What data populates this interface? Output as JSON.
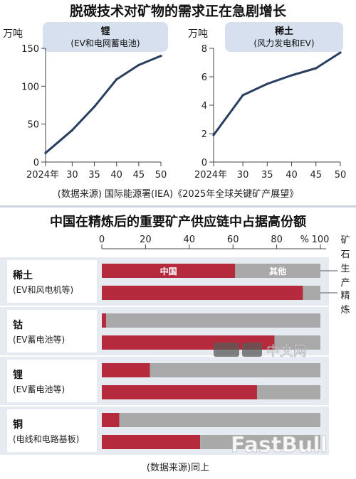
{
  "top": {
    "title": "脱碳技术对矿物的需求正在急剧增长",
    "source": "(数据来源) 国际能源署(IEA)《2025年全球关键矿产展望》"
  },
  "bottom": {
    "title": "中国在精炼后的重要矿产供应链中占据高份额",
    "source": "(数据来源)同上",
    "legend_china": "中国",
    "legend_other": "其他",
    "right_label_mining": "矿石生产",
    "right_label_refining": "精炼"
  },
  "watermark": {
    "nikkei": "中文网",
    "fastbull": "FastBull"
  },
  "colors": {
    "china": "#b52b3d",
    "other": "#a9a9a9",
    "panel": "#e6ebf2",
    "line": "#2a3f5f",
    "header": "#d6e0ef"
  },
  "chart_data": [
    {
      "type": "line",
      "title": "锂",
      "subtitle": "(EV和电网蓄电池)",
      "ylabel": "万吨",
      "categories": [
        "2024年",
        "30",
        "35",
        "40",
        "45",
        "50"
      ],
      "x": [
        2024,
        2030,
        2035,
        2040,
        2045,
        2050
      ],
      "values": [
        12,
        42,
        73,
        109,
        128,
        140
      ],
      "ylim": [
        0,
        150
      ],
      "yticks": [
        0,
        50,
        100,
        150
      ]
    },
    {
      "type": "line",
      "title": "稀土",
      "subtitle": "(风力发电和EV)",
      "ylabel": "万吨",
      "categories": [
        "2024年",
        "30",
        "35",
        "40",
        "45",
        "50"
      ],
      "x": [
        2024,
        2030,
        2035,
        2040,
        2045,
        2050
      ],
      "values": [
        1.9,
        4.7,
        5.5,
        6.1,
        6.6,
        7.7
      ],
      "ylim": [
        0,
        8
      ],
      "yticks": [
        0,
        2,
        4,
        6,
        8
      ]
    },
    {
      "type": "bar",
      "orientation": "horizontal",
      "stacked": true,
      "xlim": [
        0,
        100
      ],
      "xticks": [
        0,
        20,
        40,
        60,
        80,
        100
      ],
      "xunit": "%",
      "minerals": [
        {
          "name": "稀土",
          "desc": "(EV和风电机等)",
          "mining": 61,
          "refining": 92
        },
        {
          "name": "钴",
          "desc": "(EV蓄电池等)",
          "mining": 2,
          "refining": 79
        },
        {
          "name": "锂",
          "desc": "(EV蓄电池等)",
          "mining": 22,
          "refining": 71
        },
        {
          "name": "铜",
          "desc": "(电线和电路基板)",
          "mining": 8,
          "refining": 45
        }
      ]
    }
  ]
}
